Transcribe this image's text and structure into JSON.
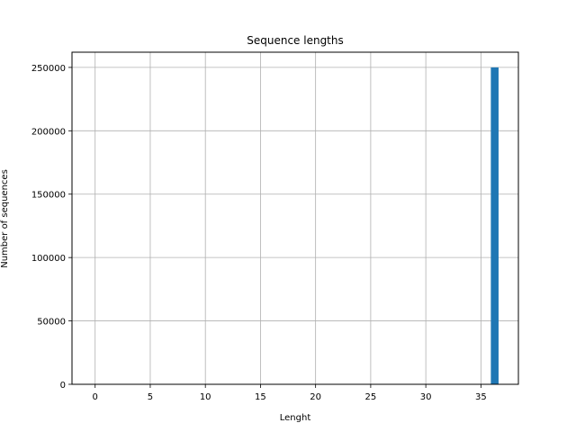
{
  "chart_data": {
    "type": "bar",
    "title": "Sequence lengths",
    "xlabel": "Lenght",
    "ylabel": "Number of sequences",
    "xlim": [
      -2.1,
      38.4
    ],
    "ylim": [
      0,
      262000
    ],
    "xticks": [
      0,
      5,
      10,
      15,
      20,
      25,
      30,
      35
    ],
    "yticks": [
      0,
      50000,
      100000,
      150000,
      200000,
      250000
    ],
    "grid": true,
    "bar_color": "#1f77b4",
    "bars": [
      {
        "x_start": 35.9,
        "x_end": 36.6,
        "value": 250000
      }
    ]
  }
}
